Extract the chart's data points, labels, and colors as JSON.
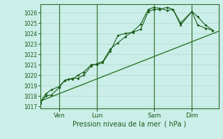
{
  "title": "",
  "xlabel": "Pression niveau de la mer ( hPa )",
  "ylabel": "",
  "ylim": [
    1016.8,
    1026.8
  ],
  "xlim": [
    0,
    94
  ],
  "yticks": [
    1017,
    1018,
    1019,
    1020,
    1021,
    1022,
    1023,
    1024,
    1025,
    1026
  ],
  "xtick_positions": [
    10,
    30,
    60,
    80
  ],
  "xtick_labels": [
    "Ven",
    "Lun",
    "Sam",
    "Dim"
  ],
  "vlines": [
    10,
    30,
    60,
    80
  ],
  "bg_color": "#cceee8",
  "grid_color": "#aad8d0",
  "line_color": "#1a5c1a",
  "trend_color": "#2a7a2a",
  "line1_x": [
    0,
    3,
    6,
    10,
    13,
    15,
    17,
    20,
    23,
    27,
    30,
    33,
    37,
    41,
    45,
    49,
    53,
    57,
    60,
    63,
    67,
    70,
    74,
    80,
    83,
    87,
    91
  ],
  "line1_y": [
    1017.3,
    1018.0,
    1018.1,
    1018.8,
    1019.5,
    1019.6,
    1019.7,
    1019.7,
    1020.0,
    1020.9,
    1021.1,
    1021.3,
    1022.5,
    1023.1,
    1023.7,
    1024.2,
    1024.9,
    1026.3,
    1026.5,
    1026.4,
    1026.2,
    1026.3,
    1025.0,
    1026.1,
    1025.6,
    1024.8,
    1024.3
  ],
  "line2_x": [
    0,
    3,
    6,
    10,
    13,
    15,
    17,
    20,
    23,
    27,
    30,
    33,
    37,
    41,
    45,
    49,
    53,
    57,
    60,
    63,
    67,
    70,
    74,
    80,
    83,
    87,
    91
  ],
  "line2_y": [
    1017.4,
    1018.2,
    1018.6,
    1018.9,
    1019.5,
    1019.6,
    1019.6,
    1020.0,
    1020.3,
    1021.0,
    1021.0,
    1021.2,
    1022.3,
    1023.8,
    1024.0,
    1024.1,
    1024.4,
    1026.1,
    1026.3,
    1026.3,
    1026.5,
    1026.3,
    1024.8,
    1026.1,
    1024.8,
    1024.5,
    1024.3
  ],
  "trend_x": [
    0,
    94
  ],
  "trend_y": [
    1017.5,
    1024.2
  ]
}
